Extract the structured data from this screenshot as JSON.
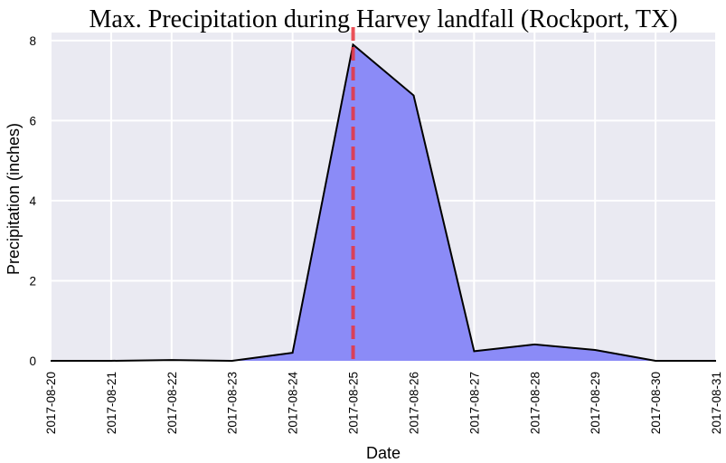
{
  "chart_data": {
    "type": "area",
    "title": "Max. Precipitation during Harvey landfall (Rockport, TX)",
    "xlabel": "Date",
    "ylabel": "Precipitation (inches)",
    "x": [
      "2017-08-20",
      "2017-08-21",
      "2017-08-22",
      "2017-08-23",
      "2017-08-24",
      "2017-08-25",
      "2017-08-26",
      "2017-08-27",
      "2017-08-28",
      "2017-08-29",
      "2017-08-30",
      "2017-08-31"
    ],
    "values": [
      0.0,
      0.0,
      0.02,
      0.0,
      0.2,
      7.9,
      6.63,
      0.24,
      0.41,
      0.27,
      0.0,
      0.0
    ],
    "ylim": [
      0,
      8.2
    ],
    "yticks": [
      0,
      2,
      4,
      6,
      8
    ],
    "annotation_date": "2017-08-25",
    "grid": true,
    "colors": {
      "plot_background": "#eaeaf2",
      "grid": "#ffffff",
      "fill": "#8b8bf7",
      "line": "#000000",
      "marker_line": "#e8323c"
    }
  }
}
